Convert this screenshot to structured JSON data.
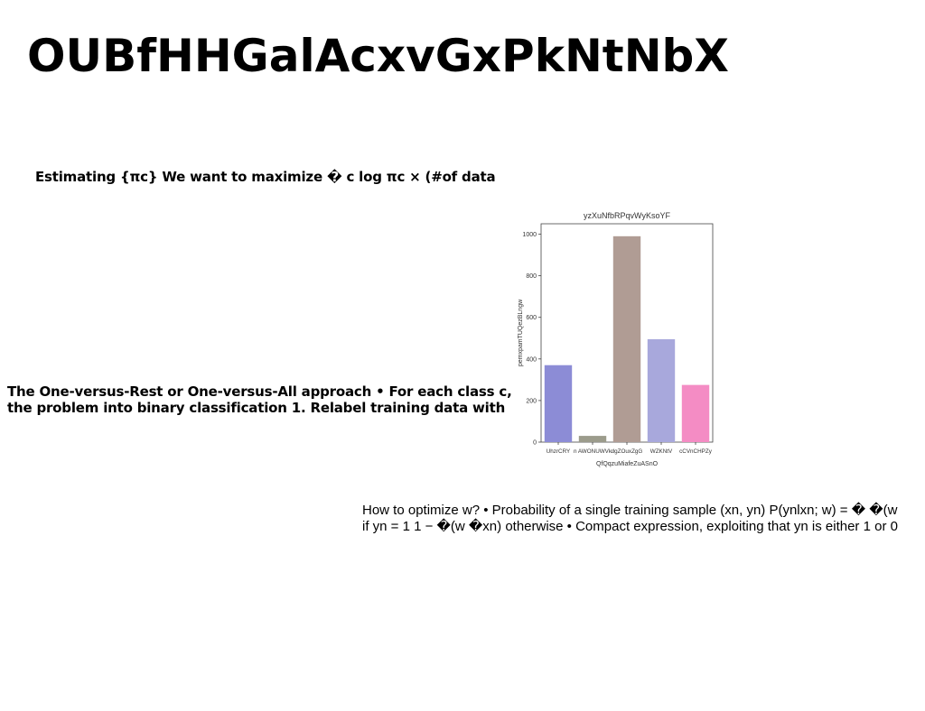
{
  "slide": {
    "title": "OUBfHHGalAcxvGxPkNtNbX",
    "text_estimating": "Estimating {πc} We want to maximize � c log πc × (#of data",
    "text_ovr_line1": "The One-versus-Rest or One-versus-All approach • For each class c,",
    "text_ovr_line2": "the problem into binary classification 1. Relabel training data with",
    "text_opt_line1": "How to optimize w? • Probability of a single training sample (xn, yn) P(ynlxn; w) = � �(w",
    "text_opt_line2": "if yn = 1 1 − �(w �xn) otherwise • Compact expression, exploiting that yn is either 1 or 0"
  },
  "chart_data": {
    "type": "bar",
    "title": "yzXuNfbRPqvWyKsoYF",
    "xlabel": "QfQqzuMiafeZuASnO",
    "ylabel": "pemxpamTUQezBLngw",
    "categories": [
      "UhzrCRY",
      "n AWONUWVk",
      "dgZOuxZgG",
      "WZKNtV",
      "cCVnCHPZy"
    ],
    "values": [
      370,
      30,
      990,
      495,
      275
    ],
    "colors": [
      "#8c8cd6",
      "#9c9c8c",
      "#b09c94",
      "#a8a8dc",
      "#f48cc4"
    ],
    "ylim": [
      0,
      1050
    ],
    "yticks": [
      0,
      200,
      400,
      600,
      800,
      1000
    ],
    "grid": false
  }
}
